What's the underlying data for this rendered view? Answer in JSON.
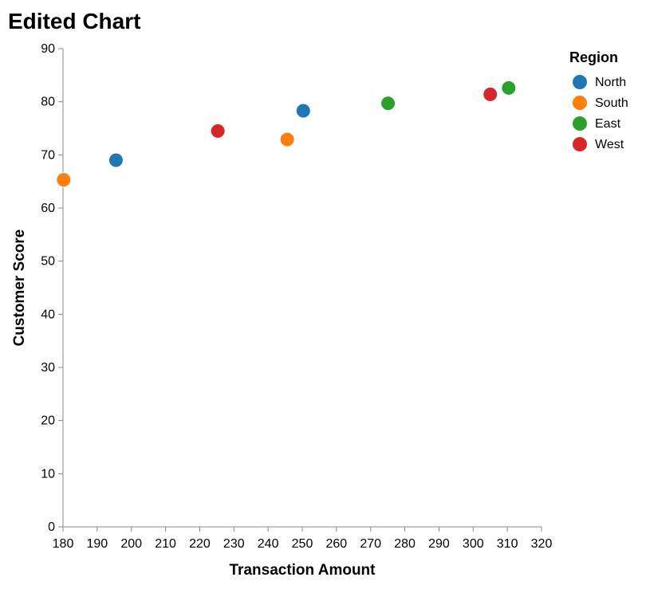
{
  "chart_data": {
    "type": "scatter",
    "title": "Edited Chart",
    "xlabel": "Transaction Amount",
    "ylabel": "Customer Score",
    "xlim": [
      180,
      320
    ],
    "ylim": [
      0,
      90
    ],
    "x_ticks": [
      180,
      190,
      200,
      210,
      220,
      230,
      240,
      250,
      260,
      270,
      280,
      290,
      300,
      310,
      320
    ],
    "y_ticks": [
      0,
      10,
      20,
      30,
      40,
      50,
      60,
      70,
      80,
      90
    ],
    "grid": false,
    "legend": {
      "title": "Region",
      "placement": "top-right"
    },
    "series": [
      {
        "name": "North",
        "color": "#1f77b4",
        "points": [
          {
            "x": 195.5,
            "y": 69.0
          },
          {
            "x": 250.3,
            "y": 78.3
          }
        ]
      },
      {
        "name": "South",
        "color": "#ff7f0e",
        "points": [
          {
            "x": 180.2,
            "y": 65.3
          },
          {
            "x": 245.6,
            "y": 72.9
          }
        ]
      },
      {
        "name": "East",
        "color": "#2ca02c",
        "points": [
          {
            "x": 275.1,
            "y": 79.7
          },
          {
            "x": 310.4,
            "y": 82.6
          }
        ]
      },
      {
        "name": "West",
        "color": "#d62728",
        "points": [
          {
            "x": 225.3,
            "y": 74.5
          },
          {
            "x": 305.0,
            "y": 81.4
          }
        ]
      }
    ]
  }
}
